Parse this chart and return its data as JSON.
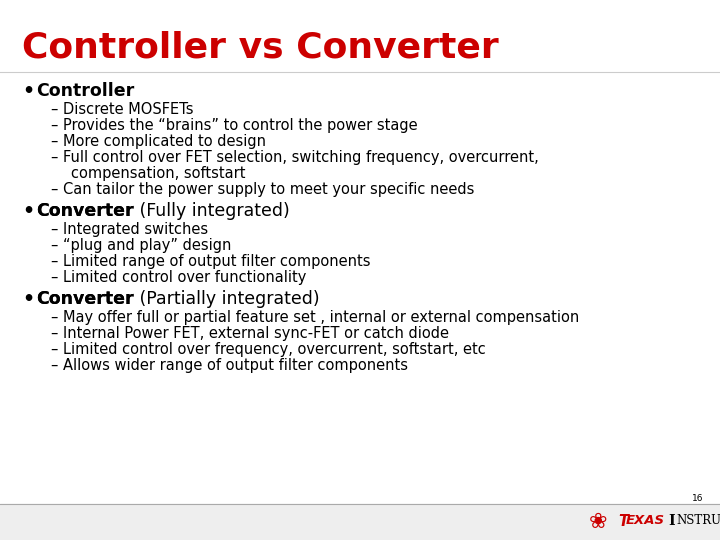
{
  "title": "Controller vs Converter",
  "title_color": "#CC0000",
  "background_color": "#FFFFFF",
  "body_color": "#000000",
  "footer_bg": "#EEEEEE",
  "footer_line_color": "#AAAAAA",
  "ti_red": "#CC0000",
  "page_number": "16",
  "content": [
    {
      "bold_text": "Controller",
      "normal_text": "",
      "sub_items": [
        "Discrete MOSFETs",
        "Provides the “brains” to control the power stage",
        "More complicated to design",
        "Full control over FET selection, switching frequency, overcurrent,",
        "    compensation, softstart",
        "Can tailor the power supply to meet your specific needs"
      ],
      "sub_continued": [
        false,
        false,
        false,
        false,
        true,
        false
      ]
    },
    {
      "bold_text": "Converter",
      "normal_text": " (Fully integrated)",
      "sub_items": [
        "Integrated switches",
        "“plug and play” design",
        "Limited range of output filter components",
        "Limited control over functionality"
      ],
      "sub_continued": [
        false,
        false,
        false,
        false
      ]
    },
    {
      "bold_text": "Converter",
      "normal_text": " (Partially integrated)",
      "sub_items": [
        "May offer full or partial feature set , internal or external compensation",
        "Internal Power FET, external sync-FET or catch diode",
        "Limited control over frequency, overcurrent, softstart, etc",
        "Allows wider range of output filter components"
      ],
      "sub_continued": [
        false,
        false,
        false,
        false
      ]
    }
  ]
}
